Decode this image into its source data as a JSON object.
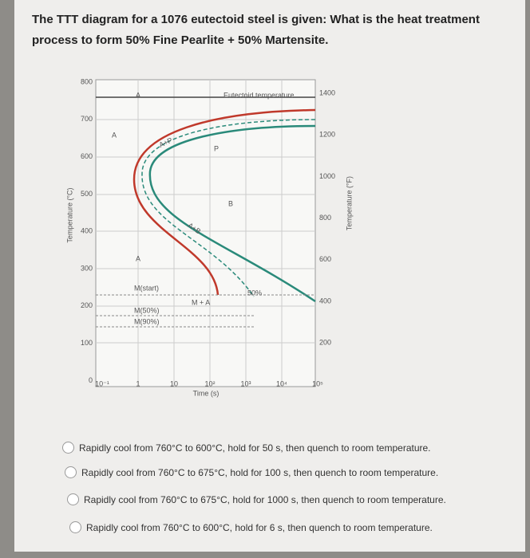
{
  "question": {
    "text": "The TTT diagram for a 1076 eutectoid steel is given: What is the heat treatment process to form 50% Fine Pearlite + 50% Martensite."
  },
  "diagram": {
    "y_axis_label": "Temperature (°C)",
    "y2_axis_label": "Temperature (°F)",
    "x_axis_label": "Time (s)",
    "y_ticks": [
      "800",
      "700",
      "600",
      "500",
      "400",
      "300",
      "200",
      "100",
      "0"
    ],
    "y2_ticks": [
      "1400",
      "1200",
      "1000",
      "800",
      "600",
      "400",
      "200"
    ],
    "x_ticks": [
      "10⁻¹",
      "1",
      "10",
      "10²",
      "10³",
      "10⁴",
      "10⁵"
    ],
    "labels": {
      "eutectoid": "Eutectoid temperature",
      "a_top": "A",
      "a_left": "A",
      "a_low": "A",
      "p": "P",
      "b": "B",
      "a_p": "A+P",
      "a_b": "A+B",
      "m_start": "M(start)",
      "m_50": "M(50%)",
      "m_90": "M(90%)",
      "m_a": "M + A",
      "fifty": "50%"
    }
  },
  "options": [
    "Rapidly cool from 760°C to 600°C, hold for 50 s, then quench to room temperature.",
    "Rapidly cool from 760°C to 675°C, hold for 100 s, then quench to room temperature.",
    "Rapidly cool from 760°C to 675°C, hold for 1000 s, then quench to room temperature.",
    "Rapidly cool from 760°C to 600°C, hold for 6 s, then quench to room temperature."
  ]
}
